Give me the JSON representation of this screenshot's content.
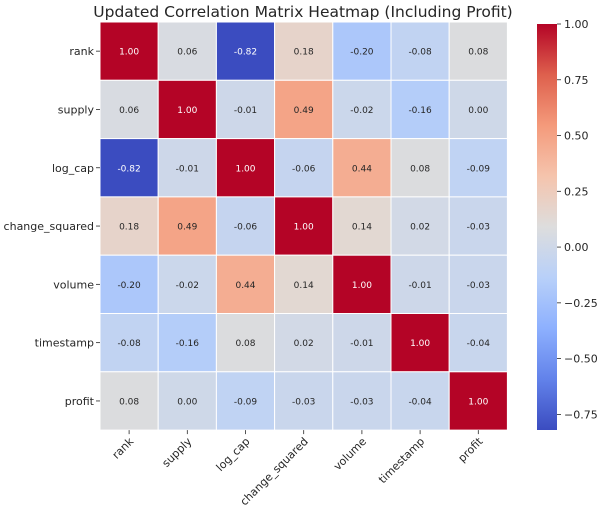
{
  "chart_data": {
    "type": "heatmap",
    "title": "Updated Correlation Matrix Heatmap (Including Profit)",
    "row_labels": [
      "rank",
      "supply",
      "log_cap",
      "change_squared",
      "volume",
      "timestamp",
      "profit"
    ],
    "col_labels": [
      "rank",
      "supply",
      "log_cap",
      "change_squared",
      "volume",
      "timestamp",
      "profit"
    ],
    "values": [
      [
        1.0,
        0.06,
        -0.82,
        0.18,
        -0.2,
        -0.08,
        0.08
      ],
      [
        0.06,
        1.0,
        -0.01,
        0.49,
        -0.02,
        -0.16,
        0.0
      ],
      [
        -0.82,
        -0.01,
        1.0,
        -0.06,
        0.44,
        0.08,
        -0.09
      ],
      [
        0.18,
        0.49,
        -0.06,
        1.0,
        0.14,
        0.02,
        -0.03
      ],
      [
        -0.2,
        -0.02,
        0.44,
        0.14,
        1.0,
        -0.01,
        -0.03
      ],
      [
        -0.08,
        -0.16,
        0.08,
        0.02,
        -0.01,
        1.0,
        -0.04
      ],
      [
        0.08,
        0.0,
        -0.09,
        -0.03,
        -0.03,
        -0.04,
        1.0
      ]
    ],
    "value_labels": [
      [
        "1.00",
        "0.06",
        "-0.82",
        "0.18",
        "-0.20",
        "-0.08",
        "0.08"
      ],
      [
        "0.06",
        "1.00",
        "-0.01",
        "0.49",
        "-0.02",
        "-0.16",
        "0.00"
      ],
      [
        "-0.82",
        "-0.01",
        "1.00",
        "-0.06",
        "0.44",
        "0.08",
        "-0.09"
      ],
      [
        "0.18",
        "0.49",
        "-0.06",
        "1.00",
        "0.14",
        "0.02",
        "-0.03"
      ],
      [
        "-0.20",
        "-0.02",
        "0.44",
        "0.14",
        "1.00",
        "-0.01",
        "-0.03"
      ],
      [
        "-0.08",
        "-0.16",
        "0.08",
        "0.02",
        "-0.01",
        "1.00",
        "-0.04"
      ],
      [
        "0.08",
        "0.00",
        "-0.09",
        "-0.03",
        "-0.03",
        "-0.04",
        "1.00"
      ]
    ],
    "colormap": "coolwarm",
    "vmin": -0.82,
    "vmax": 1.0,
    "colorbar_ticks": [
      1.0,
      0.75,
      0.5,
      0.25,
      0.0,
      -0.25,
      -0.5,
      -0.75
    ],
    "colorbar_tick_labels": [
      "1.00",
      "0.75",
      "0.50",
      "0.25",
      "0.00",
      "−0.25",
      "−0.50",
      "−0.75"
    ],
    "legend_position": "right"
  }
}
